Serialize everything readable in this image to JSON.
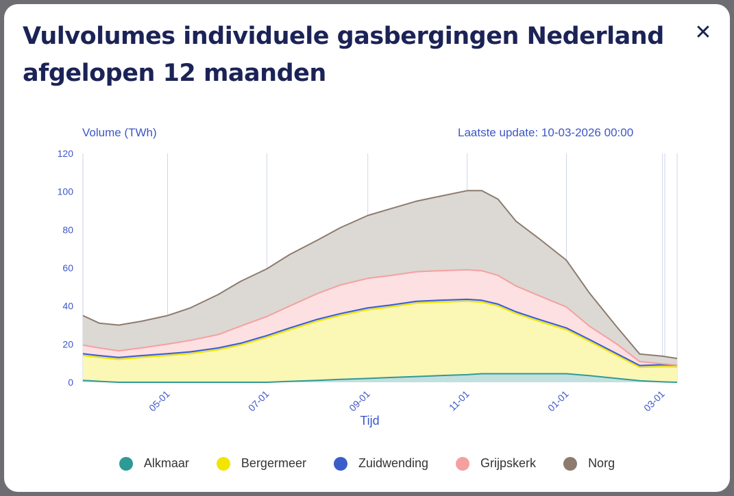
{
  "modal": {
    "title": "Vulvolumes individuele gasbergingen Nederland afgelopen 12 maanden",
    "close_icon": "close-icon"
  },
  "chart_header": {
    "ylabel": "Volume (TWh)",
    "update": "Laatste update: 10-03-2026 00:00"
  },
  "chart_data": {
    "type": "area",
    "stacked": true,
    "xlabel": "Tijd",
    "ylabel": "Volume (TWh)",
    "ylim": [
      0,
      120
    ],
    "yticks": [
      0,
      20,
      40,
      60,
      80,
      100,
      120
    ],
    "grid": "vertical",
    "legend_position": "bottom",
    "x": [
      "2025-03-10",
      "2025-03-20",
      "2025-04-01",
      "2025-04-15",
      "2025-05-01",
      "2025-05-15",
      "2025-06-01",
      "2025-06-15",
      "2025-07-01",
      "2025-07-15",
      "2025-08-01",
      "2025-08-15",
      "2025-09-01",
      "2025-09-15",
      "2025-10-01",
      "2025-10-15",
      "2025-11-01",
      "2025-11-10",
      "2025-11-20",
      "2025-12-01",
      "2025-12-15",
      "2026-01-01",
      "2026-01-15",
      "2026-02-01",
      "2026-02-15",
      "2026-03-01",
      "2026-03-10"
    ],
    "xticks": [
      {
        "date": "2025-05-01",
        "label": "05-01"
      },
      {
        "date": "2025-07-01",
        "label": "07-01"
      },
      {
        "date": "2025-09-01",
        "label": "09-01"
      },
      {
        "date": "2025-11-01",
        "label": "11-01"
      },
      {
        "date": "2026-01-01",
        "label": "01-01"
      },
      {
        "date": "2026-03-01",
        "label": "03-01"
      }
    ],
    "series": [
      {
        "name": "Alkmaar",
        "color": "#2e9a96",
        "fill": "#c3dfde",
        "values": [
          1,
          0.5,
          0,
          0,
          0,
          0,
          0,
          0,
          0,
          0.5,
          1,
          1.5,
          2,
          2.5,
          3,
          3.5,
          4,
          4.5,
          4.5,
          4.5,
          4.5,
          4.5,
          3.5,
          2,
          0.8,
          0.2,
          0
        ]
      },
      {
        "name": "Bergermeer",
        "color": "#f2e600",
        "fill": "#fbf7b5",
        "values": [
          13,
          12.5,
          12,
          13,
          14,
          15,
          17,
          19.5,
          23.5,
          27,
          31,
          33.5,
          36,
          37,
          38.5,
          38.5,
          38.5,
          37.5,
          35.5,
          31.5,
          27.5,
          23,
          18,
          12,
          7,
          8,
          8
        ]
      },
      {
        "name": "Zuidwending",
        "color": "#3b5dc9",
        "fill": "#bcc8ee",
        "values": [
          1,
          1,
          1,
          1,
          1,
          1,
          1,
          1,
          1,
          1,
          1,
          1,
          1,
          1,
          1,
          1,
          1,
          1,
          1,
          1,
          1,
          1,
          1,
          1,
          1,
          1,
          1
        ]
      },
      {
        "name": "Grijpskerk",
        "color": "#f4a0a0",
        "fill": "#fde0e2",
        "values": [
          4.5,
          4,
          3.5,
          4,
          5,
          6,
          7,
          9,
          10,
          11.5,
          13.5,
          15,
          15.5,
          15.5,
          15.5,
          15.5,
          15.5,
          15.5,
          15,
          13.5,
          12.5,
          11,
          7,
          5,
          2,
          0.5,
          0
        ]
      },
      {
        "name": "Norg",
        "color": "#8c7b6e",
        "fill": "#dcd8d4",
        "values": [
          15.5,
          13,
          13.5,
          14,
          15,
          17,
          21,
          23.5,
          25,
          27,
          28,
          30,
          33,
          35,
          37,
          39,
          41.5,
          42,
          40,
          34,
          30,
          24.5,
          17.5,
          9,
          4,
          4,
          3.5
        ]
      }
    ]
  },
  "legend": [
    {
      "label": "Alkmaar",
      "color": "#2e9a96"
    },
    {
      "label": "Bergermeer",
      "color": "#f2e600"
    },
    {
      "label": "Zuidwending",
      "color": "#3b5dc9"
    },
    {
      "label": "Grijpskerk",
      "color": "#f4a0a0"
    },
    {
      "label": "Norg",
      "color": "#8c7b6e"
    }
  ]
}
